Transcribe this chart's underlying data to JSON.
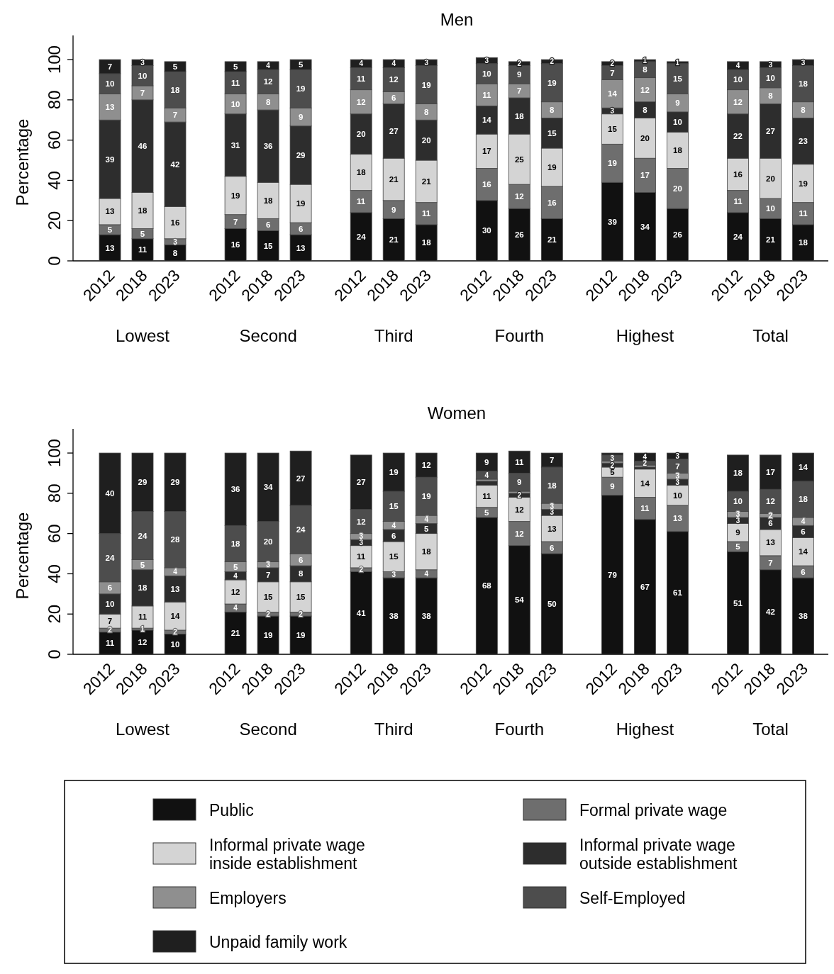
{
  "chart_data": [
    {
      "type": "bar",
      "title": "Men",
      "ylabel": "Percentage",
      "stacked": true,
      "data_labels": true,
      "grid": false,
      "ylim": [
        0,
        112
      ],
      "yticks": [
        0,
        20,
        40,
        60,
        80,
        100
      ],
      "categories": [
        "2012",
        "2018",
        "2023",
        "2012",
        "2018",
        "2023",
        "2012",
        "2018",
        "2023",
        "2012",
        "2018",
        "2023",
        "2012",
        "2018",
        "2023",
        "2012",
        "2018",
        "2023"
      ],
      "annotations": [
        "Lowest",
        "Second",
        "Third",
        "Fourth",
        "Highest",
        "Total"
      ],
      "series": [
        {
          "color": "#111111",
          "values": [
            13,
            11,
            8,
            16,
            15,
            13,
            24,
            21,
            18,
            30,
            26,
            21,
            39,
            34,
            26,
            24,
            21,
            18
          ]
        },
        {
          "color": "#6e6e6e",
          "values": [
            5,
            5,
            3,
            7,
            6,
            6,
            11,
            9,
            11,
            16,
            12,
            16,
            19,
            17,
            20,
            11,
            10,
            11
          ]
        },
        {
          "color": "#d4d4d4",
          "values": [
            13,
            18,
            16,
            19,
            18,
            19,
            18,
            21,
            21,
            17,
            25,
            19,
            15,
            20,
            18,
            16,
            20,
            19
          ]
        },
        {
          "color": "#2d2d2d",
          "values": [
            39,
            46,
            42,
            31,
            36,
            29,
            20,
            27,
            20,
            14,
            18,
            15,
            3,
            8,
            10,
            22,
            27,
            23
          ]
        },
        {
          "color": "#8f8f8f",
          "values": [
            13,
            7,
            7,
            10,
            8,
            9,
            12,
            6,
            8,
            11,
            7,
            8,
            14,
            12,
            9,
            12,
            8,
            8
          ]
        },
        {
          "color": "#4d4d4d",
          "values": [
            10,
            10,
            18,
            11,
            12,
            19,
            11,
            12,
            19,
            10,
            9,
            19,
            7,
            8,
            15,
            10,
            10,
            18
          ]
        },
        {
          "color": "#1f1f1f",
          "values": [
            7,
            3,
            5,
            5,
            4,
            5,
            4,
            4,
            3,
            3,
            2,
            2,
            2,
            1,
            1,
            4,
            3,
            3
          ]
        }
      ]
    },
    {
      "type": "bar",
      "title": "Women",
      "ylabel": "Percentage",
      "stacked": true,
      "legend": "bottom",
      "grid": false,
      "ylim": [
        0,
        112
      ],
      "yticks": [
        0,
        20,
        40,
        60,
        80,
        100
      ],
      "categories": [
        "2012",
        "2018",
        "2023",
        "2012",
        "2018",
        "2023",
        "2012",
        "2018",
        "2023",
        "2012",
        "2018",
        "2023",
        "2012",
        "2018",
        "2023",
        "2012",
        "2018",
        "2023"
      ],
      "annotations": [
        "Lowest",
        "Second",
        "Third",
        "Fourth",
        "Highest",
        "Total"
      ],
      "series": [
        {
          "name": "Public",
          "color": "#111111",
          "values": [
            11,
            12,
            10,
            21,
            19,
            19,
            41,
            38,
            38,
            68,
            54,
            50,
            79,
            67,
            61,
            51,
            42,
            38
          ],
          "value_labels": [
            "11",
            "12",
            "10",
            "21",
            "19",
            "19",
            "41",
            "38",
            "38",
            "68",
            "54",
            "50",
            "79",
            "67",
            "61",
            "51",
            "42",
            "38"
          ]
        },
        {
          "name": "Formal private wage",
          "color": "#6e6e6e",
          "values": [
            2,
            1,
            2,
            4,
            2,
            2,
            2,
            3,
            4,
            5,
            12,
            6,
            9,
            11,
            13,
            5,
            7,
            6
          ],
          "value_labels": [
            "2",
            "1",
            "2",
            "4",
            "2",
            "2",
            "2",
            "3",
            "4",
            "5",
            "12",
            "6",
            "9",
            "11",
            "13",
            "5",
            "7",
            "6"
          ]
        },
        {
          "name": "Informal private wage inside establishment",
          "color": "#d4d4d4",
          "values": [
            7,
            11,
            14,
            12,
            15,
            15,
            11,
            15,
            18,
            11,
            12,
            13,
            5,
            14,
            10,
            9,
            13,
            14
          ],
          "value_labels": [
            "7",
            "11",
            "14",
            "12",
            "15",
            "15",
            "11",
            "15",
            "18",
            "11",
            "12",
            "13",
            "5",
            "14",
            "10",
            "9",
            "13",
            "14"
          ]
        },
        {
          "name": "Informal private wage outside establishment",
          "color": "#2d2d2d",
          "values": [
            10,
            18,
            13,
            4,
            7,
            8,
            3,
            6,
            5,
            2,
            2,
            3,
            2,
            1,
            3,
            3,
            6,
            6
          ],
          "value_labels": [
            "10",
            "18",
            "13",
            "4",
            "7",
            "8",
            "3",
            "6",
            "5",
            null,
            "2",
            "3",
            "2",
            null,
            "3",
            "3",
            "6",
            "6"
          ]
        },
        {
          "name": "Employers",
          "color": "#8f8f8f",
          "values": [
            6,
            5,
            4,
            5,
            3,
            6,
            3,
            4,
            4,
            1,
            1,
            3,
            1,
            1,
            3,
            3,
            2,
            4
          ],
          "value_labels": [
            "6",
            "5",
            "4",
            "5",
            "3",
            "6",
            "3",
            "4",
            "4",
            null,
            null,
            "3",
            null,
            null,
            "3",
            "3",
            "2",
            "4"
          ]
        },
        {
          "name": "Self-Employed",
          "color": "#4d4d4d",
          "values": [
            24,
            24,
            28,
            18,
            20,
            24,
            12,
            15,
            19,
            4,
            9,
            18,
            3,
            2,
            7,
            10,
            12,
            18
          ],
          "value_labels": [
            "24",
            "24",
            "28",
            "18",
            "20",
            "24",
            "12",
            "15",
            "19",
            "4",
            "9",
            "18",
            "3",
            "2",
            "7",
            "10",
            "12",
            "18"
          ]
        },
        {
          "name": "Unpaid family work",
          "color": "#1f1f1f",
          "values": [
            40,
            29,
            29,
            36,
            34,
            27,
            27,
            19,
            12,
            9,
            11,
            7,
            1,
            4,
            3,
            18,
            17,
            14
          ],
          "value_labels": [
            "40",
            "29",
            "29",
            "36",
            "34",
            "27",
            "27",
            "19",
            "12",
            "9",
            "11",
            "7",
            null,
            "4",
            "3",
            "18",
            "17",
            "14"
          ]
        }
      ]
    }
  ]
}
